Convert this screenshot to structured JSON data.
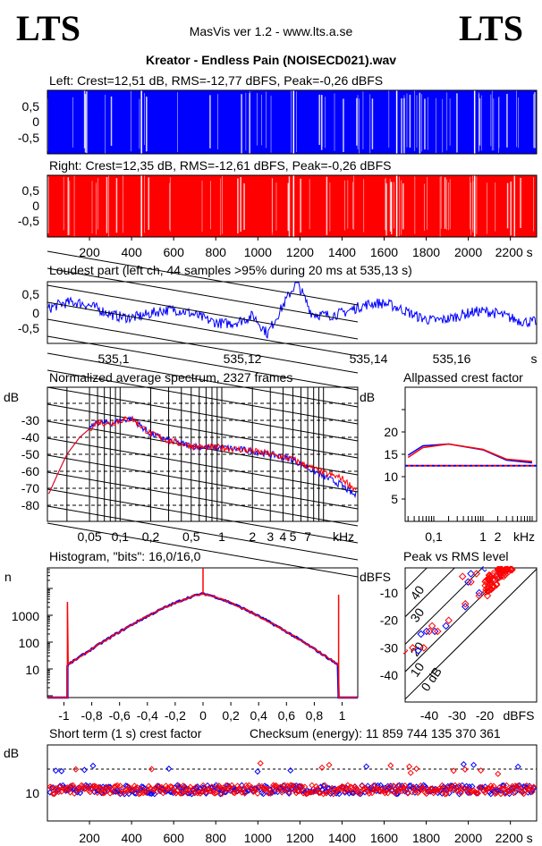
{
  "header": {
    "logo_left": "LTS",
    "logo_right": "LTS",
    "app": "MasVis ver 1.2 - www.lts.a.se",
    "file_title": "Kreator - Endless Pain (NOISECD021).wav"
  },
  "colors": {
    "left": "#0000ff",
    "right": "#ff0000"
  },
  "chart_data": [
    {
      "type": "line",
      "title": "Left: Crest=12,51 dB, RMS=-12,77 dBFS, Peak=-0,26 dBFS",
      "yticks": [
        "0,5",
        "0",
        "-0,5"
      ],
      "ylim": [
        -1,
        1
      ],
      "xlim": [
        0,
        2327
      ]
    },
    {
      "type": "line",
      "title": "Right: Crest=12,35 dB, RMS=-12,61 dBFS, Peak=-0,26 dBFS",
      "yticks": [
        "0,5",
        "0",
        "-0,5"
      ],
      "xticks": [
        "200",
        "400",
        "600",
        "800",
        "1000",
        "1200",
        "1400",
        "1600",
        "1800",
        "2000",
        "2200 s"
      ],
      "xlim": [
        0,
        2327
      ]
    },
    {
      "type": "line",
      "title": "Loudest part (left  ch, 44 samples >95% during 20 ms at 535,13 s)",
      "yticks": [
        "0,5",
        "0",
        "-0,5"
      ],
      "xticks": [
        "535,1",
        "535,12",
        "535,14",
        "535,16",
        "s"
      ]
    },
    {
      "type": "line",
      "title": "Normalized average spectrum, 2327 frames",
      "ylabel": "dB",
      "yticks": [
        "-30",
        "-40",
        "-50",
        "-60",
        "-70",
        "-80"
      ],
      "xticks": [
        "0,05",
        "0,1",
        "0,2",
        "0,5",
        "1",
        "2",
        "3",
        "4",
        "5",
        "7",
        "kHz"
      ],
      "series": [
        {
          "name": "left",
          "x": [
            0.02,
            0.025,
            0.03,
            0.04,
            0.05,
            0.06,
            0.08,
            0.1,
            0.13,
            0.2,
            0.3,
            0.5,
            0.7,
            1,
            2,
            3,
            5,
            7,
            10,
            15,
            20
          ],
          "y": [
            -73,
            -60,
            -50,
            -40,
            -35,
            -31,
            -32,
            -30,
            -29,
            -38,
            -42,
            -45,
            -46,
            -46,
            -48,
            -50,
            -53,
            -58,
            -63,
            -68,
            -74
          ]
        },
        {
          "name": "right",
          "x": [
            0.02,
            0.025,
            0.03,
            0.04,
            0.05,
            0.06,
            0.08,
            0.1,
            0.13,
            0.2,
            0.3,
            0.5,
            0.7,
            1,
            2,
            3,
            5,
            7,
            10,
            15,
            20
          ],
          "y": [
            -73,
            -60,
            -50,
            -40,
            -35,
            -31,
            -32,
            -30,
            -29,
            -38,
            -42,
            -45,
            -46,
            -46,
            -48,
            -50,
            -53,
            -57,
            -61,
            -64,
            -70
          ]
        }
      ]
    },
    {
      "type": "line",
      "title": "Allpassed crest factor",
      "ylabel": "dB",
      "yticks": [
        "20",
        "15",
        "10",
        "5"
      ],
      "xticks": [
        "0,1",
        "1",
        "2",
        "kHz"
      ],
      "series": [
        {
          "name": "left",
          "x": [
            0.03,
            0.06,
            0.2,
            1,
            3,
            10
          ],
          "y": [
            14.8,
            16.9,
            17.3,
            16,
            13.7,
            13.1
          ]
        },
        {
          "name": "right",
          "x": [
            0.03,
            0.06,
            0.2,
            1,
            3,
            10
          ],
          "y": [
            14.3,
            16.5,
            17.3,
            16.1,
            13.9,
            13.4
          ]
        }
      ],
      "reference": {
        "left": 12.5,
        "right": 12.35
      }
    },
    {
      "type": "line",
      "title": "Histogram, \"bits\": 16,0/16,0",
      "ylabel": "n",
      "yticks": [
        "1000",
        "100",
        "10"
      ],
      "xticks": [
        "-1",
        "-0,8",
        "-0,6",
        "-0,4",
        "-0,2",
        "0",
        "0,2",
        "0,4",
        "0,6",
        "0,8",
        "1"
      ]
    },
    {
      "type": "scatter",
      "title": "Peak vs RMS level",
      "ylabel": "dBFS",
      "xlabel": "dBFS",
      "yticks": [
        "-10",
        "-20",
        "-30",
        "-40"
      ],
      "xticks": [
        "-40",
        "-30",
        "-20"
      ],
      "crest_lines": [
        "40",
        "30",
        "20",
        "10",
        "0 dB"
      ],
      "series": [
        {
          "name": "left",
          "points": [
            [
              -44,
              -31
            ],
            [
              -43,
              -25
            ],
            [
              -41,
              -24
            ],
            [
              -38,
              -24
            ],
            [
              -34,
              -22
            ],
            [
              -27,
              -15
            ],
            [
              -26,
              -6
            ],
            [
              -25,
              -3
            ],
            [
              -22,
              -10
            ],
            [
              -20,
              -1
            ],
            [
              -18,
              -6
            ],
            [
              -16,
              -4
            ],
            [
              -14,
              -2
            ],
            [
              -12,
              -1
            ]
          ]
        },
        {
          "name": "right",
          "points": [
            [
              -49,
              -31
            ],
            [
              -46,
              -30
            ],
            [
              -42,
              -30
            ],
            [
              -40,
              -24
            ],
            [
              -39,
              -22
            ],
            [
              -37,
              -24
            ],
            [
              -33,
              -20
            ],
            [
              -28,
              -4
            ],
            [
              -27,
              -14
            ],
            [
              -25,
              -6
            ],
            [
              -23,
              -3
            ],
            [
              -22,
              -11
            ],
            [
              -19,
              -5
            ],
            [
              -18,
              -7
            ],
            [
              -17,
              -3
            ],
            [
              -15,
              -2
            ],
            [
              -13,
              -1
            ],
            [
              -11,
              -1
            ],
            [
              -10,
              -1
            ]
          ]
        }
      ]
    },
    {
      "type": "scatter",
      "title": "Short term (1 s) crest factor",
      "ylabel": "dB",
      "yticks": [
        "10"
      ],
      "xticks": [
        "200",
        "400",
        "600",
        "800",
        "1000",
        "1200",
        "1400",
        "1600",
        "1800",
        "2000",
        "2200 s"
      ],
      "checksum": "Checksum (energy):  11 859 744 135 370 361"
    }
  ]
}
